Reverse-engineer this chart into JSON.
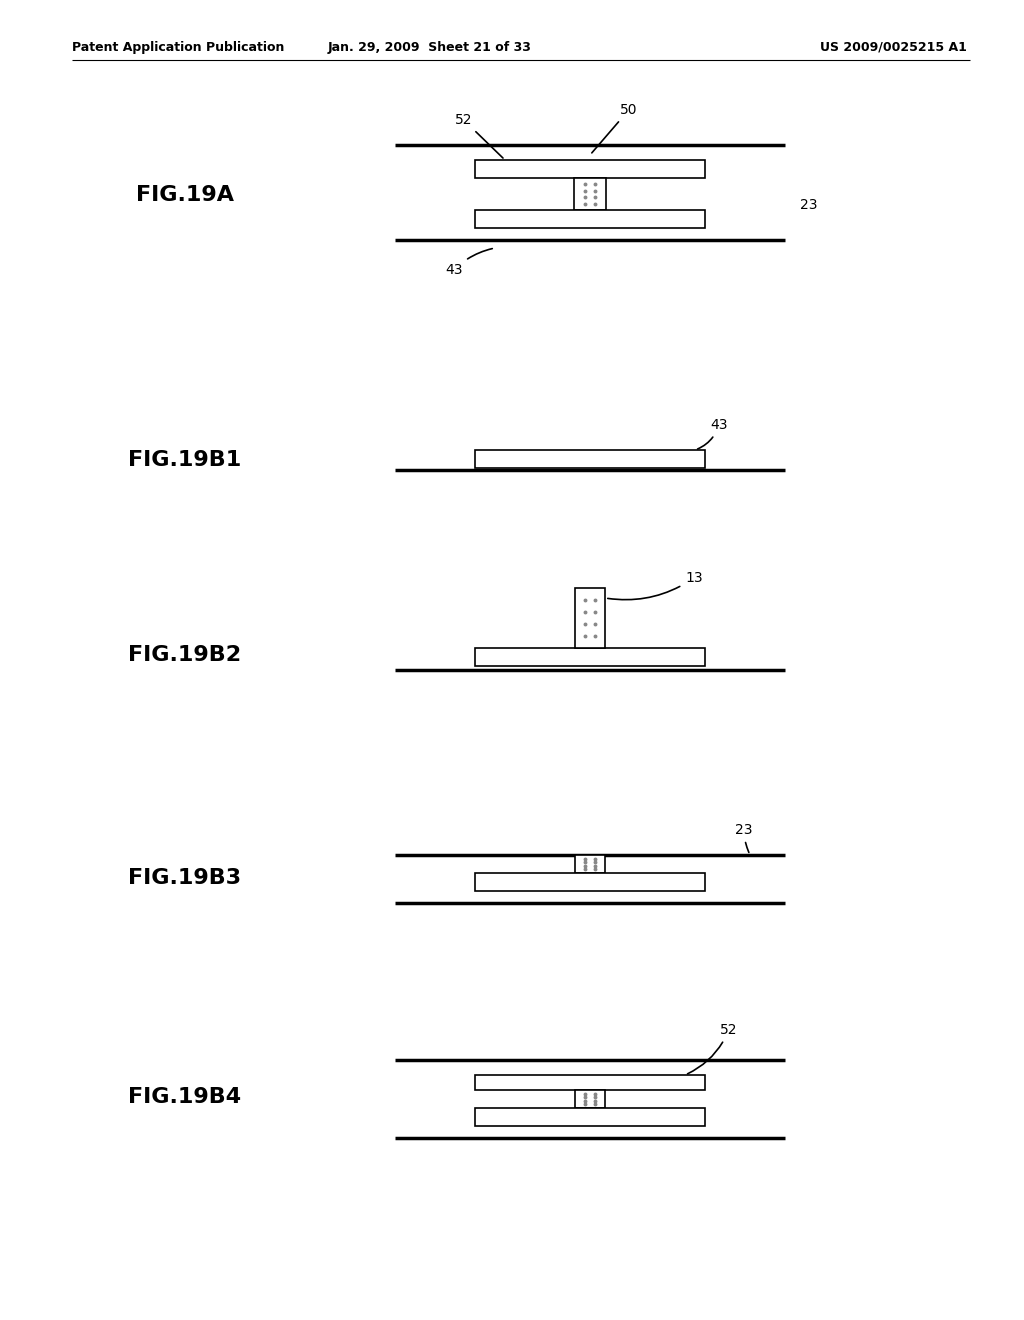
{
  "background_color": "#ffffff",
  "header_left": "Patent Application Publication",
  "header_middle": "Jan. 29, 2009  Sheet 21 of 33",
  "header_right": "US 2009/0025215 A1",
  "line_color": "#000000",
  "lw_thin": 1.2,
  "lw_thick": 2.5,
  "fig_label_fontsize": 16,
  "annot_fontsize": 10,
  "header_fontsize": 9
}
